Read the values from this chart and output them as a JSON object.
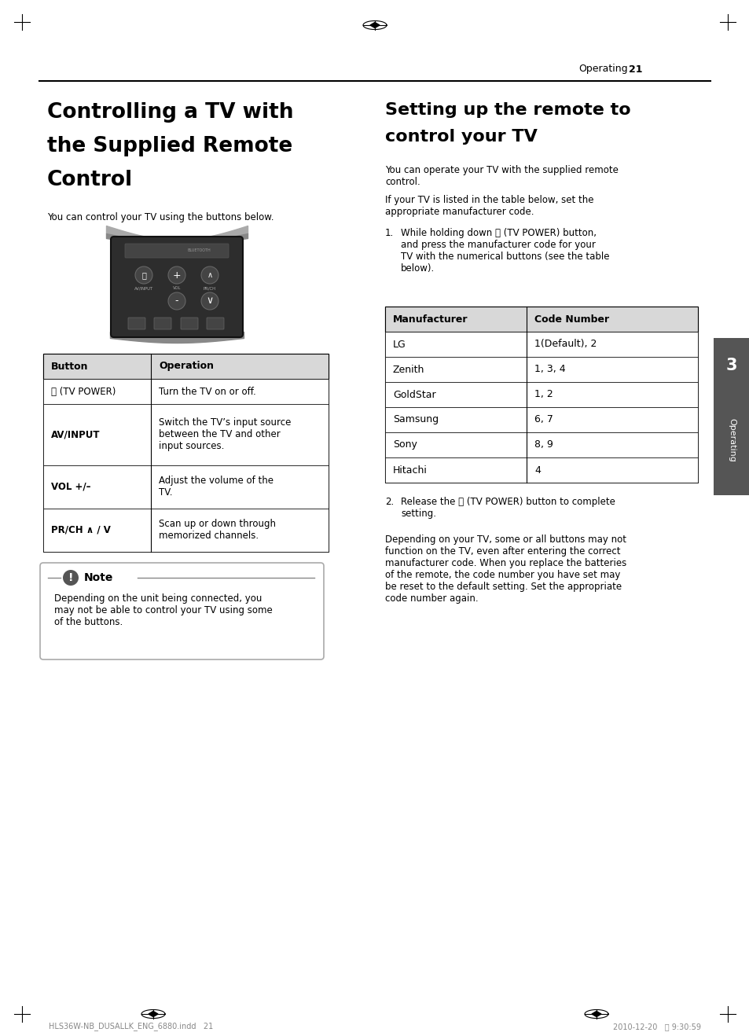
{
  "page_num": "21",
  "header_text": "Operating",
  "left_title_lines": [
    "Controlling a TV with",
    "the Supplied Remote",
    "Control"
  ],
  "left_subtitle": "You can control your TV using the buttons below.",
  "button_table_headers": [
    "Button",
    "Operation"
  ],
  "button_table_rows": [
    [
      "ⓧ (TV POWER)",
      "Turn the TV on or off."
    ],
    [
      "AV/INPUT",
      "Switch the TV’s input source\nbetween the TV and other\ninput sources."
    ],
    [
      "VOL +/–",
      "Adjust the volume of the\nTV."
    ],
    [
      "PR/CH ∧ / V",
      "Scan up or down through\nmemorized channels."
    ]
  ],
  "button_bold": [
    false,
    true,
    true,
    true
  ],
  "note_title": "Note",
  "note_text": "Depending on the unit being connected, you\nmay not be able to control your TV using some\nof the buttons.",
  "right_title_lines": [
    "Setting up the remote to",
    "control your TV"
  ],
  "right_intro1": "You can operate your TV with the supplied remote\ncontrol.",
  "right_intro2": "If your TV is listed in the table below, set the\nappropriate manufacturer code.",
  "step1_num": "1.",
  "step1_text": "While holding down ⓧ (TV POWER) button,\nand press the manufacturer code for your\nTV with the numerical buttons (see the table\nbelow).",
  "step2_num": "2.",
  "step2_text": "Release the ⓧ (TV POWER) button to complete\nsetting.",
  "right_para": "Depending on your TV, some or all buttons may not\nfunction on the TV, even after entering the correct\nmanufacturer code. When you replace the batteries\nof the remote, the code number you have set may\nbe reset to the default setting. Set the appropriate\ncode number again.",
  "mfr_table_headers": [
    "Manufacturer",
    "Code Number"
  ],
  "mfr_table_rows": [
    [
      "LG",
      "1(Default), 2"
    ],
    [
      "Zenith",
      "1, 3, 4"
    ],
    [
      "GoldStar",
      "1, 2"
    ],
    [
      "Samsung",
      "6, 7"
    ],
    [
      "Sony",
      "8, 9"
    ],
    [
      "Hitachi",
      "4"
    ]
  ],
  "section_tab": "3",
  "section_label": "Operating",
  "footer_left": "HLS36W-NB_DUSALLK_ENG_6880.indd   21",
  "footer_right": "2010-12-20   前 9:30:59",
  "bg_color": "#ffffff",
  "tab_color": "#555555",
  "header_gray": "#d8d8d8"
}
